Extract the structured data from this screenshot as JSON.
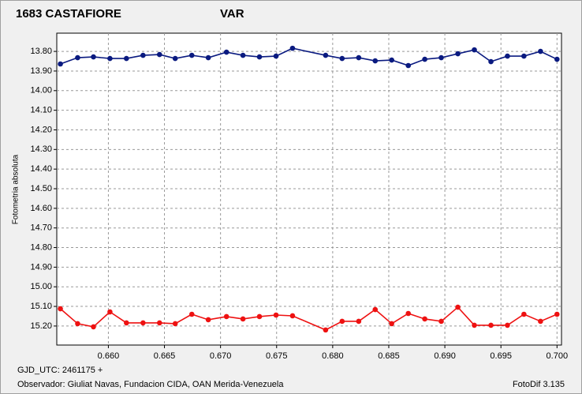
{
  "chart_data": {
    "type": "line",
    "y_label": "Fotometria absoluta",
    "footer_left_1": "GJD_UTC: 2461175 +",
    "footer_left_2": "Observador: Giuliat Navas, Fundacion CIDA, OAN  Merida-Venezuela",
    "footer_right": "FotoDif 3.135",
    "x": [
      0.65572,
      0.65726,
      0.65867,
      0.66014,
      0.66161,
      0.66309,
      0.66456,
      0.66596,
      0.66744,
      0.66891,
      0.67053,
      0.672,
      0.67347,
      0.67495,
      0.67642,
      0.67937,
      0.68084,
      0.68232,
      0.68379,
      0.68526,
      0.68674,
      0.68821,
      0.68968,
      0.69116,
      0.69263,
      0.69411,
      0.69558,
      0.69705,
      0.69853,
      0.7
    ],
    "series": [
      {
        "name": "1683 CASTAFIORE",
        "color": "#ee1111",
        "values": [
          15.112,
          15.188,
          15.204,
          15.128,
          15.184,
          15.184,
          15.184,
          15.188,
          15.14,
          15.168,
          15.152,
          15.164,
          15.152,
          15.144,
          15.148,
          15.22,
          15.176,
          15.176,
          15.116,
          15.188,
          15.136,
          15.164,
          15.176,
          15.104,
          15.196,
          15.196,
          15.196,
          15.14,
          15.176,
          15.14
        ]
      },
      {
        "name": "VAR",
        "color": "#0a1a80",
        "values": [
          13.864,
          13.832,
          13.828,
          13.836,
          13.836,
          13.82,
          13.816,
          13.836,
          13.82,
          13.832,
          13.804,
          13.82,
          13.828,
          13.824,
          13.784,
          13.82,
          13.836,
          13.832,
          13.848,
          13.844,
          13.872,
          13.84,
          13.832,
          13.812,
          13.792,
          13.852,
          13.824,
          13.824,
          13.8,
          13.84
        ]
      }
    ],
    "xlim": [
      0.6554,
      0.7004
    ],
    "xticks": [
      {
        "value": 0.66,
        "label": "0.660"
      },
      {
        "value": 0.665,
        "label": "0.665"
      },
      {
        "value": 0.67,
        "label": "0.670"
      },
      {
        "value": 0.675,
        "label": "0.675"
      },
      {
        "value": 0.68,
        "label": "0.680"
      },
      {
        "value": 0.685,
        "label": "0.685"
      },
      {
        "value": 0.69,
        "label": "0.690"
      },
      {
        "value": 0.695,
        "label": "0.695"
      },
      {
        "value": 0.7,
        "label": "0.700"
      }
    ],
    "ylim": [
      13.707,
      15.297
    ],
    "y_inverted": true,
    "yticks": [
      {
        "value": 13.8,
        "label": "13.80"
      },
      {
        "value": 13.9,
        "label": "13.90"
      },
      {
        "value": 14.0,
        "label": "14.00"
      },
      {
        "value": 14.1,
        "label": "14.10"
      },
      {
        "value": 14.2,
        "label": "14.20"
      },
      {
        "value": 14.3,
        "label": "14.30"
      },
      {
        "value": 14.4,
        "label": "14.40"
      },
      {
        "value": 14.5,
        "label": "14.50"
      },
      {
        "value": 14.6,
        "label": "14.60"
      },
      {
        "value": 14.7,
        "label": "14.70"
      },
      {
        "value": 14.8,
        "label": "14.80"
      },
      {
        "value": 14.9,
        "label": "14.90"
      },
      {
        "value": 15.0,
        "label": "15.00"
      },
      {
        "value": 15.1,
        "label": "15.10"
      },
      {
        "value": 15.2,
        "label": "15.20"
      }
    ],
    "grid": true
  }
}
